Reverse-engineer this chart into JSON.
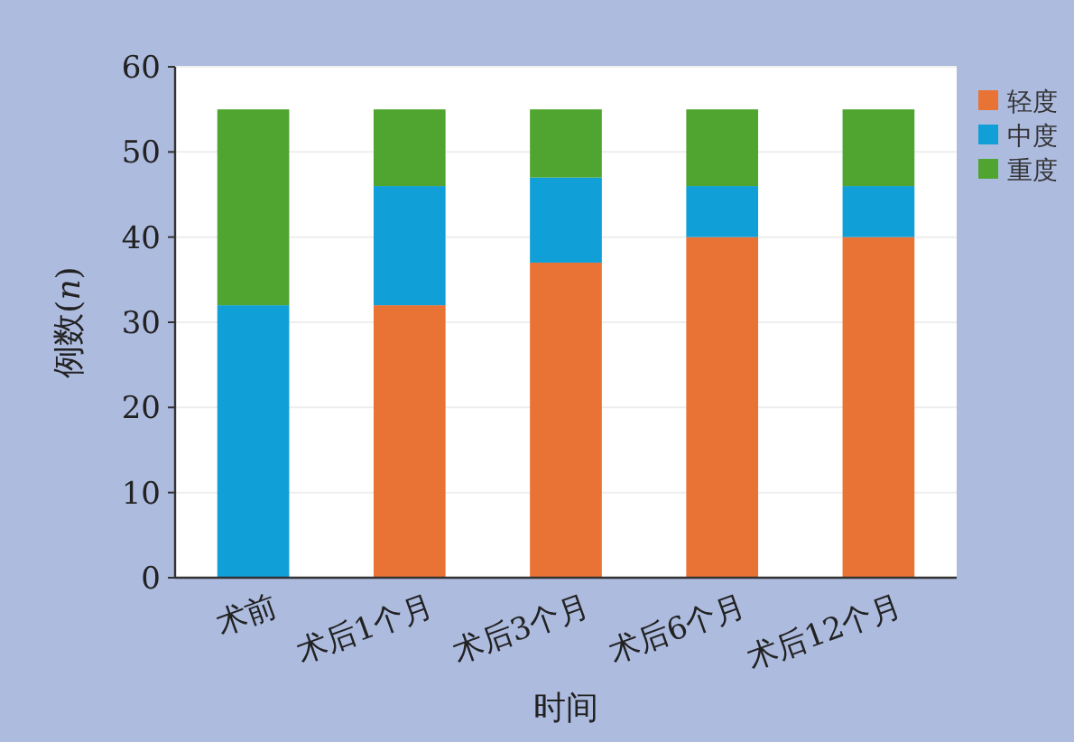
{
  "chart_data": {
    "type": "bar",
    "stacked": true,
    "xlabel": "时间",
    "ylabel": "例数(*n*)",
    "categories": [
      "术前",
      "术后1个月",
      "术后3个月",
      "术后6个月",
      "术后12个月"
    ],
    "series": [
      {
        "name": "轻度",
        "color": "#e97334",
        "values": [
          0,
          32,
          37,
          40,
          40
        ]
      },
      {
        "name": "中度",
        "color": "#109fd6",
        "values": [
          32,
          14,
          10,
          6,
          6
        ]
      },
      {
        "name": "重度",
        "color": "#4fa52f",
        "values": [
          23,
          9,
          8,
          9,
          9
        ]
      }
    ],
    "ylim": [
      0,
      60
    ],
    "yticks": [
      0,
      10,
      20,
      30,
      40,
      50,
      60
    ],
    "grid": "y",
    "legend": "top right"
  }
}
